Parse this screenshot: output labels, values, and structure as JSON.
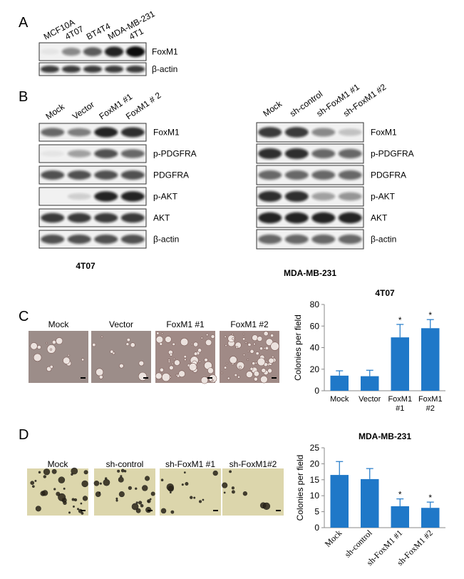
{
  "panels": {
    "A": {
      "label": "A",
      "lanes": [
        "MCF10A",
        "4T07",
        "BT4T4",
        "MDA-MB-231",
        "4T1"
      ],
      "bands": [
        "FoxM1",
        "β-actin"
      ]
    },
    "B": {
      "label": "B",
      "left": {
        "lanes": [
          "Mock",
          "Vector",
          "FoxM1 #1",
          "FoxM1 # 2"
        ],
        "bands": [
          "FoxM1",
          "p-PDGFRA",
          "PDGFRA",
          "p-AKT",
          "AKT",
          "β-actin"
        ],
        "cell_line": "4T07"
      },
      "right": {
        "lanes": [
          "Mock",
          "sh-control",
          "sh-FoxM1 #1",
          "sh-FoxM1 #2"
        ],
        "bands": [
          "FoxM1",
          "p-PDGFRA",
          "PDGFRA",
          "p-AKT",
          "AKT",
          "β-actin"
        ],
        "cell_line": "MDA-MB-231"
      }
    },
    "C": {
      "label": "C",
      "images": [
        "Mock",
        "Vector",
        "FoxM1 #1",
        "FoxM1 #2"
      ]
    },
    "D": {
      "label": "D",
      "images": [
        "Mock",
        "sh-control",
        "sh-FoxM1 #1",
        "sh-FoxM1#2"
      ]
    }
  },
  "chart_data": [
    {
      "type": "bar",
      "title": "4T07",
      "y_label": "Colonies per field",
      "categories": [
        "Mock",
        "Vector",
        "FoxM1 #1",
        "FoxM1 #2"
      ],
      "values": [
        14,
        13.5,
        49.5,
        58
      ],
      "errors": [
        4.5,
        5.5,
        12,
        8
      ],
      "annotations": [
        null,
        null,
        "*",
        "*"
      ],
      "color": "#1f78c8",
      "ylim": [
        0,
        80
      ],
      "yticks": [
        0,
        20,
        40,
        60,
        80
      ]
    },
    {
      "type": "bar",
      "title": "MDA-MB-231",
      "y_label": "Colonies per field",
      "categories": [
        "Mock",
        "sh-control",
        "sh-FoxM1 #1",
        "sh-FoxM1 #2"
      ],
      "values": [
        16.5,
        15.2,
        6.7,
        6.2
      ],
      "errors": [
        4.2,
        3.3,
        2.3,
        1.8
      ],
      "annotations": [
        null,
        null,
        "*",
        "*"
      ],
      "color": "#1f78c8",
      "ylim": [
        0,
        25
      ],
      "yticks": [
        0,
        5,
        10,
        15,
        20,
        25
      ]
    }
  ]
}
